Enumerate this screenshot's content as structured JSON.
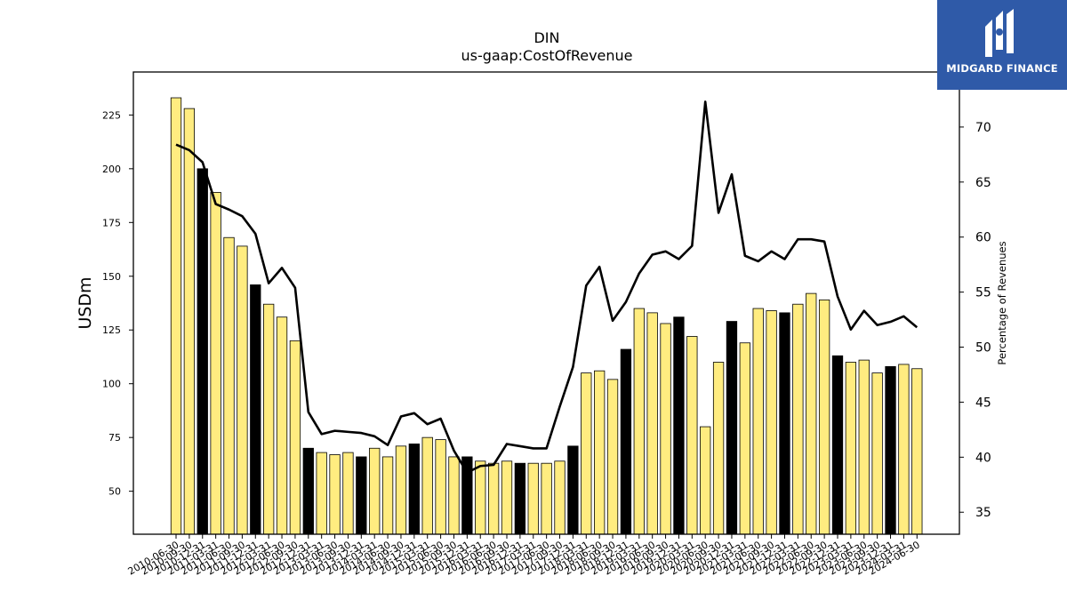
{
  "brand": {
    "logo_text": "MIDGARD FINANCE"
  },
  "chart_data": {
    "type": "bar",
    "title": "DIN",
    "subtitle": "us-gaap:CostOfRevenue",
    "ylabel": "USDm",
    "y2label": "Percentage of Revenues",
    "ylim": [
      30,
      245
    ],
    "y2lim": [
      33,
      75
    ],
    "yticks": [
      50,
      75,
      100,
      125,
      150,
      175,
      200,
      225
    ],
    "y2ticks": [
      35,
      40,
      45,
      50,
      55,
      60,
      65,
      70
    ],
    "grid": false,
    "colors": {
      "bar": "#ffec80",
      "bar_highlight": "#000000",
      "line": "#000000",
      "edge": "#000000"
    },
    "categories": [
      "2010-06-30",
      "2010-09-30",
      "2010-12-31",
      "2011-03-31",
      "2011-06-30",
      "2011-09-30",
      "2011-12-31",
      "2012-03-31",
      "2012-06-30",
      "2012-09-30",
      "2012-12-31",
      "2013-03-31",
      "2013-06-30",
      "2013-09-30",
      "2013-12-31",
      "2014-03-31",
      "2014-06-30",
      "2014-09-30",
      "2014-12-31",
      "2015-03-31",
      "2015-06-30",
      "2015-09-30",
      "2015-12-31",
      "2016-03-31",
      "2016-06-30",
      "2016-09-30",
      "2016-12-31",
      "2017-03-31",
      "2017-06-30",
      "2017-09-30",
      "2017-12-31",
      "2018-03-31",
      "2018-06-30",
      "2018-09-30",
      "2018-12-31",
      "2019-03-31",
      "2019-06-30",
      "2019-09-30",
      "2019-12-31",
      "2020-03-31",
      "2020-06-30",
      "2020-09-30",
      "2020-12-31",
      "2021-03-31",
      "2021-06-30",
      "2021-09-30",
      "2021-12-31",
      "2022-03-31",
      "2022-06-30",
      "2022-09-30",
      "2022-12-31",
      "2023-03-31",
      "2023-06-30",
      "2023-09-30",
      "2023-12-31",
      "2024-03-31",
      "2024-06-30"
    ],
    "series": [
      {
        "type": "bar",
        "values": [
          233,
          228,
          200,
          189,
          168,
          164,
          146,
          137,
          131,
          120,
          70,
          68,
          67,
          68,
          66,
          70,
          66,
          71,
          72,
          75,
          74,
          66,
          66,
          64,
          63,
          64,
          63,
          63,
          63,
          64,
          71,
          105,
          106,
          102,
          116,
          135,
          133,
          128,
          131,
          122,
          80,
          110,
          129,
          119,
          135,
          134,
          133,
          137,
          142,
          139,
          113,
          110,
          111,
          105,
          108,
          109,
          107
        ],
        "highlighted": [
          2,
          6,
          10,
          14,
          18,
          22,
          26,
          30,
          34,
          38,
          42,
          46,
          50,
          54
        ]
      },
      {
        "type": "line",
        "axis": "secondary",
        "values": [
          68.4,
          67.9,
          66.8,
          63.0,
          62.5,
          61.9,
          60.3,
          55.8,
          57.2,
          55.4,
          44.1,
          42.1,
          42.4,
          42.3,
          42.2,
          41.9,
          41.1,
          43.7,
          44.0,
          43.0,
          43.5,
          40.6,
          38.6,
          39.2,
          39.3,
          41.2,
          41.0,
          40.8,
          40.8,
          44.6,
          48.2,
          55.6,
          57.3,
          52.4,
          54.1,
          56.7,
          58.4,
          58.7,
          58.0,
          59.2,
          72.3,
          62.2,
          65.7,
          58.3,
          57.8,
          58.7,
          58.0,
          59.8,
          59.8,
          59.6,
          54.6,
          51.6,
          53.3,
          52.0,
          52.3,
          52.8,
          51.8
        ]
      }
    ]
  }
}
